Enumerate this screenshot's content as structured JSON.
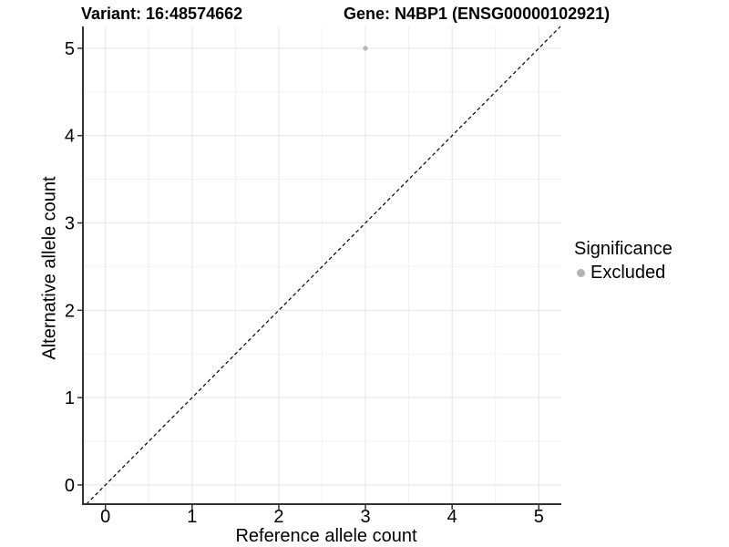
{
  "header": {
    "variant_title": "Variant: 16:48574662",
    "gene_title": "Gene: N4BP1 (ENSG00000102921)"
  },
  "legend": {
    "title": "Significance",
    "position": "right",
    "items": [
      {
        "label": "Excluded",
        "color": "#b4b4b4"
      }
    ]
  },
  "chart_data": {
    "type": "scatter",
    "title_left": "Variant: 16:48574662",
    "title_right": "Gene: N4BP1 (ENSG00000102921)",
    "xlabel": "Reference allele count",
    "ylabel": "Alternative allele count",
    "x_ticks": [
      0,
      1,
      2,
      3,
      4,
      5
    ],
    "y_ticks": [
      0,
      1,
      2,
      3,
      4,
      5
    ],
    "x_minor": [
      0.5,
      1.5,
      2.5,
      3.5,
      4.5
    ],
    "y_minor": [
      0.5,
      1.5,
      2.5,
      3.5,
      4.5
    ],
    "xlim": [
      -0.26,
      5.26
    ],
    "ylim": [
      -0.22,
      5.25
    ],
    "grid": "major+minor",
    "points": [
      {
        "x": 3,
        "y": 5,
        "series": "Excluded"
      }
    ],
    "reference_line": {
      "type": "identity",
      "slope": 1,
      "intercept": 0,
      "style": "dashed",
      "color": "#000000"
    }
  },
  "colors": {
    "background": "#ffffff",
    "grid_major": "#e4e4e4",
    "grid_minor": "#f1f1f1",
    "axis_line": "#333333",
    "tick_mark": "#333333",
    "text": "#000000",
    "excluded": "#b4b4b4"
  }
}
